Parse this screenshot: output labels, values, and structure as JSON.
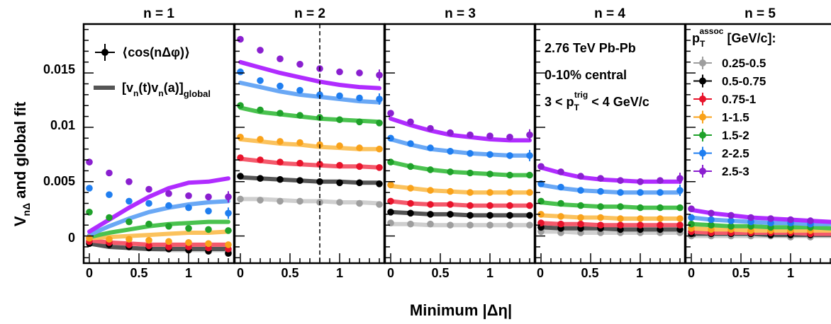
{
  "figure": {
    "ylabel_main": "V",
    "ylabel_sub": "nΔ",
    "ylabel_rest": " and global fit",
    "xlabel": "Minimum |Δη|",
    "panel_titles": [
      "n = 1",
      "n = 2",
      "n = 3",
      "n = 4",
      "n = 5"
    ],
    "y_ticks": [
      "0",
      "0.005",
      "0.01",
      "0.015"
    ],
    "x_ticks_full": [
      "0",
      "0.5",
      "1"
    ],
    "x_ticks_last": [
      "0",
      "0.5",
      "1"
    ]
  },
  "legend_markers": {
    "marker_label": "⟨cos(nΔφ)⟩",
    "fit_label_main": "[v",
    "fit_label_rest": "(t)v",
    "fit_label_tail": "(a)]",
    "fit_label_sub_n": "n",
    "fit_label_sub_global": "global"
  },
  "info": {
    "line1": "2.76 TeV Pb-Pb",
    "line2": "0-10% central",
    "line3_a": "3 < p",
    "line3_sub": "T",
    "line3_sup": "trig",
    "line3_b": " < 4 GeV/c"
  },
  "legend_pt": {
    "title_a": "p",
    "title_sub": "T",
    "title_sup": "assoc",
    "title_b": " [GeV/c]:",
    "entries": [
      {
        "label": "0.25-0.5",
        "color": "#9e9e9e"
      },
      {
        "label": "0.5-0.75",
        "color": "#000000"
      },
      {
        "label": "0.75-1",
        "color": "#e8132b"
      },
      {
        "label": "1-1.5",
        "color": "#f9a21a"
      },
      {
        "label": "1.5-2",
        "color": "#1fa12a"
      },
      {
        "label": "2-2.5",
        "color": "#1f7ef0"
      },
      {
        "label": "2.5-3",
        "color": "#8a1fd0"
      }
    ]
  },
  "colors": {
    "series": [
      "#9e9e9e",
      "#000000",
      "#e8132b",
      "#f9a21a",
      "#1fa12a",
      "#1f7ef0",
      "#8a1fd0"
    ],
    "fit": [
      "#cfcfcf",
      "#555555",
      "#f45a6c",
      "#fbc25d",
      "#4ac24f",
      "#6aa8f5",
      "#b02cff"
    ]
  },
  "chart_data": {
    "type": "scatter",
    "x": [
      0,
      0.2,
      0.4,
      0.6,
      0.8,
      1.0,
      1.2,
      1.4
    ],
    "xlim": [
      -0.05,
      1.5
    ],
    "ylim": [
      -0.0025,
      0.0195
    ],
    "ylabel": "V_nΔ and global fit",
    "xlabel": "Minimum |Δη|",
    "series_names": [
      "0.25-0.5",
      "0.5-0.75",
      "0.75-1",
      "1-1.5",
      "1.5-2",
      "2-2.5",
      "2.5-3"
    ],
    "panels": [
      {
        "n": 1,
        "points": [
          [
            -0.0006,
            -0.0008,
            -0.001,
            -0.0011,
            -0.0012,
            -0.0012,
            -0.0013,
            -0.0014
          ],
          [
            -0.0007,
            -0.0008,
            -0.001,
            -0.0011,
            -0.0012,
            -0.0013,
            -0.0014,
            -0.0016
          ],
          [
            -0.0005,
            -0.0006,
            -0.0008,
            -0.0009,
            -0.001,
            -0.001,
            -0.0011,
            -0.0012
          ],
          [
            -0.0002,
            -0.0003,
            -0.0003,
            -0.0004,
            -0.0005,
            -0.0006,
            -0.0007,
            -0.0008
          ],
          [
            0.0022,
            0.0017,
            0.0013,
            0.0011,
            0.0009,
            0.0007,
            0.0006,
            0.0005
          ],
          [
            0.0044,
            0.0038,
            0.0032,
            0.003,
            0.0028,
            0.0026,
            0.0023,
            0.0021
          ],
          [
            0.0068,
            0.0058,
            0.005,
            0.0043,
            0.0039,
            0.0037,
            0.0036,
            0.0036
          ]
        ],
        "fit": [
          [
            -0.0006,
            -0.0009,
            -0.0011,
            -0.0012,
            -0.0013,
            -0.0013,
            -0.0013,
            -0.0013
          ],
          [
            -0.0007,
            -0.001,
            -0.0011,
            -0.0012,
            -0.0012,
            -0.0012,
            -0.0012,
            -0.0012
          ],
          [
            -0.0004,
            -0.0006,
            -0.0007,
            -0.0008,
            -0.0008,
            -0.0008,
            -0.0008,
            -0.0008
          ],
          [
            -0.0002,
            -0.0001,
            0.0,
            0.0001,
            0.0002,
            0.0003,
            0.0003,
            0.0004
          ],
          [
            -0.0001,
            0.0003,
            0.0006,
            0.0009,
            0.0011,
            0.0012,
            0.0013,
            0.0013
          ],
          [
            0.0001,
            0.0009,
            0.0016,
            0.0022,
            0.0026,
            0.0029,
            0.0031,
            0.0032
          ],
          [
            0.0004,
            0.0015,
            0.0026,
            0.0036,
            0.0044,
            0.0049,
            0.005,
            0.0053
          ]
        ]
      },
      {
        "n": 2,
        "points": [
          [
            0.0034,
            0.0033,
            0.0032,
            0.0032,
            0.0031,
            0.0031,
            0.003,
            0.0029
          ],
          [
            0.0055,
            0.0053,
            0.0052,
            0.0051,
            0.005,
            0.0049,
            0.0049,
            0.0048
          ],
          [
            0.0072,
            0.007,
            0.0068,
            0.0067,
            0.0066,
            0.0065,
            0.0064,
            0.0063
          ],
          [
            0.0091,
            0.0089,
            0.0087,
            0.0086,
            0.0084,
            0.0083,
            0.0081,
            0.008
          ],
          [
            0.012,
            0.0116,
            0.0113,
            0.0111,
            0.0109,
            0.0107,
            0.0105,
            0.0104
          ],
          [
            0.0151,
            0.0143,
            0.0138,
            0.0134,
            0.013,
            0.0129,
            0.0127,
            0.0126
          ],
          [
            0.0181,
            0.0171,
            0.0163,
            0.0158,
            0.0154,
            0.0151,
            0.015,
            0.0148
          ]
        ],
        "fit": [
          [
            0.0034,
            0.0034,
            0.0033,
            0.0032,
            0.0032,
            0.0031,
            0.0031,
            0.003
          ],
          [
            0.0054,
            0.0053,
            0.0052,
            0.0051,
            0.005,
            0.005,
            0.0049,
            0.0049
          ],
          [
            0.0071,
            0.0069,
            0.0067,
            0.0066,
            0.0065,
            0.0064,
            0.0064,
            0.0063
          ],
          [
            0.0089,
            0.0087,
            0.0085,
            0.0084,
            0.0082,
            0.0081,
            0.008,
            0.008
          ],
          [
            0.0118,
            0.0114,
            0.0112,
            0.011,
            0.0108,
            0.0107,
            0.0106,
            0.0105
          ],
          [
            0.0141,
            0.0137,
            0.0133,
            0.013,
            0.0128,
            0.0126,
            0.0124,
            0.0123
          ],
          [
            0.016,
            0.0155,
            0.015,
            0.0146,
            0.0142,
            0.0139,
            0.0137,
            0.0136
          ]
        ]
      },
      {
        "n": 3,
        "points": [
          [
            0.0012,
            0.0011,
            0.0011,
            0.001,
            0.001,
            0.001,
            0.001,
            0.001
          ],
          [
            0.0022,
            0.0021,
            0.002,
            0.002,
            0.0019,
            0.0019,
            0.0019,
            0.0019
          ],
          [
            0.0032,
            0.003,
            0.0029,
            0.0029,
            0.0028,
            0.0028,
            0.0028,
            0.0028
          ],
          [
            0.0047,
            0.0044,
            0.0042,
            0.0041,
            0.004,
            0.004,
            0.004,
            0.004
          ],
          [
            0.0068,
            0.0064,
            0.0061,
            0.0059,
            0.0058,
            0.0057,
            0.0056,
            0.0056
          ],
          [
            0.009,
            0.0085,
            0.0081,
            0.0078,
            0.0076,
            0.0075,
            0.0074,
            0.0074
          ],
          [
            0.0113,
            0.0105,
            0.0099,
            0.0095,
            0.0093,
            0.0092,
            0.0091,
            0.0093
          ]
        ],
        "fit": [
          [
            0.0011,
            0.0011,
            0.001,
            0.001,
            0.001,
            0.001,
            0.001,
            0.001
          ],
          [
            0.0022,
            0.0021,
            0.002,
            0.002,
            0.0019,
            0.0019,
            0.0019,
            0.0019
          ],
          [
            0.0032,
            0.003,
            0.0029,
            0.0029,
            0.0028,
            0.0028,
            0.0028,
            0.0028
          ],
          [
            0.0046,
            0.0044,
            0.0042,
            0.0041,
            0.004,
            0.004,
            0.004,
            0.004
          ],
          [
            0.0068,
            0.0064,
            0.0061,
            0.0059,
            0.0058,
            0.0057,
            0.0056,
            0.0056
          ],
          [
            0.0089,
            0.0084,
            0.008,
            0.0078,
            0.0076,
            0.0075,
            0.0074,
            0.0074
          ],
          [
            0.0108,
            0.0102,
            0.0097,
            0.0093,
            0.0091,
            0.0089,
            0.0088,
            0.0088
          ]
        ]
      },
      {
        "n": 4,
        "points": [
          [
            0.0004,
            0.0003,
            0.0003,
            0.0003,
            0.0003,
            0.0003,
            0.0003,
            0.0003
          ],
          [
            0.0008,
            0.0007,
            0.0007,
            0.0007,
            0.0006,
            0.0006,
            0.0006,
            0.0006
          ],
          [
            0.0012,
            0.0011,
            0.0011,
            0.001,
            0.001,
            0.001,
            0.001,
            0.001
          ],
          [
            0.002,
            0.0018,
            0.0017,
            0.0017,
            0.0016,
            0.0016,
            0.0016,
            0.0016
          ],
          [
            0.0032,
            0.003,
            0.0028,
            0.0027,
            0.0027,
            0.0026,
            0.0026,
            0.0026
          ],
          [
            0.0048,
            0.0045,
            0.0042,
            0.0041,
            0.004,
            0.004,
            0.004,
            0.0042
          ],
          [
            0.0064,
            0.0059,
            0.0055,
            0.0053,
            0.0051,
            0.005,
            0.0051,
            0.0053
          ]
        ],
        "fit": [
          [
            0.0004,
            0.0004,
            0.0003,
            0.0003,
            0.0003,
            0.0003,
            0.0003,
            0.0003
          ],
          [
            0.0008,
            0.0007,
            0.0007,
            0.0007,
            0.0006,
            0.0006,
            0.0006,
            0.0006
          ],
          [
            0.0012,
            0.0011,
            0.0011,
            0.001,
            0.001,
            0.001,
            0.001,
            0.001
          ],
          [
            0.0019,
            0.0018,
            0.0017,
            0.0017,
            0.0016,
            0.0016,
            0.0016,
            0.0016
          ],
          [
            0.0031,
            0.0029,
            0.0028,
            0.0027,
            0.0027,
            0.0026,
            0.0026,
            0.0026
          ],
          [
            0.0047,
            0.0044,
            0.0042,
            0.0041,
            0.004,
            0.004,
            0.004,
            0.004
          ],
          [
            0.0063,
            0.0058,
            0.0054,
            0.0052,
            0.0051,
            0.005,
            0.005,
            0.005
          ]
        ]
      },
      {
        "n": 5,
        "points": [
          [
            0.0,
            0.0,
            0.0,
            0.0,
            0.0,
            -0.0001,
            -0.0001,
            -0.0001
          ],
          [
            0.0002,
            0.0002,
            0.0002,
            0.0002,
            0.0001,
            0.0001,
            0.0001,
            0.0001
          ],
          [
            0.0004,
            0.0003,
            0.0003,
            0.0003,
            0.0003,
            0.0003,
            0.0002,
            0.0002
          ],
          [
            0.0007,
            0.0006,
            0.0006,
            0.0005,
            0.0005,
            0.0005,
            0.0005,
            0.0005
          ],
          [
            0.0011,
            0.001,
            0.0009,
            0.0009,
            0.0008,
            0.0008,
            0.0008,
            0.0007
          ],
          [
            0.0017,
            0.0015,
            0.0014,
            0.0013,
            0.0012,
            0.0012,
            0.0011,
            0.0011
          ],
          [
            0.0025,
            0.0021,
            0.0019,
            0.0017,
            0.0016,
            0.0015,
            0.0014,
            0.0013
          ]
        ],
        "fit": [
          [
            0.0,
            0.0,
            0.0,
            0.0,
            0.0,
            0.0,
            0.0,
            0.0
          ],
          [
            0.0002,
            0.0002,
            0.0002,
            0.0002,
            0.0001,
            0.0001,
            0.0001,
            0.0001
          ],
          [
            0.0004,
            0.0003,
            0.0003,
            0.0003,
            0.0003,
            0.0003,
            0.0002,
            0.0002
          ],
          [
            0.0007,
            0.0006,
            0.0006,
            0.0005,
            0.0005,
            0.0005,
            0.0005,
            0.0005
          ],
          [
            0.0011,
            0.001,
            0.0009,
            0.0009,
            0.0008,
            0.0008,
            0.0008,
            0.0007
          ],
          [
            0.0017,
            0.0015,
            0.0014,
            0.0013,
            0.0012,
            0.0012,
            0.0011,
            0.0011
          ],
          [
            0.0024,
            0.0021,
            0.0019,
            0.0017,
            0.0016,
            0.0015,
            0.0014,
            0.0013
          ]
        ]
      }
    ],
    "dashed_line_x": 0.8,
    "dashed_line_panel": 2
  }
}
